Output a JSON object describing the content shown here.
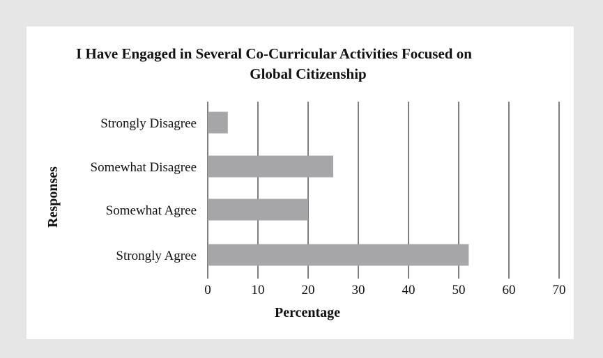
{
  "chart_data": {
    "type": "bar",
    "orientation": "horizontal",
    "title_lines": [
      "I Have Engaged in Several Co-Curricular Activities Focused on",
      "Global Citizenship"
    ],
    "xlabel": "Percentage",
    "ylabel": "Responses",
    "categories": [
      "Strongly Disagree",
      "Somewhat Disagree",
      "Somewhat Agree",
      "Strongly Agree"
    ],
    "values": [
      4,
      25,
      20,
      52
    ],
    "xlim": [
      0,
      70
    ],
    "xticks": [
      0,
      10,
      20,
      30,
      40,
      50,
      60,
      70
    ],
    "grid": "vertical",
    "colors": {
      "bar": "#a6a6a8",
      "grid": "#000000",
      "background": "#e6e6e7",
      "panel": "#ffffff"
    }
  }
}
